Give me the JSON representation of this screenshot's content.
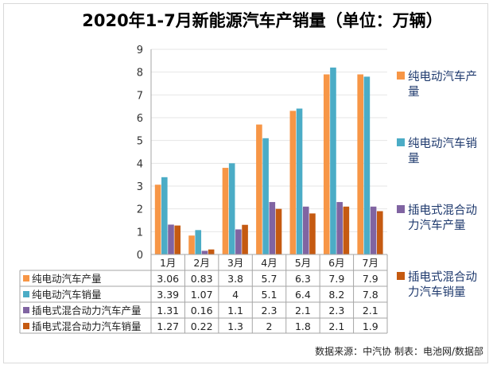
{
  "chart_data": {
    "type": "bar",
    "title": "2020年1-7月新能源汽车产销量（单位：万辆）",
    "categories": [
      "1月",
      "2月",
      "3月",
      "4月",
      "5月",
      "6月",
      "7月"
    ],
    "series": [
      {
        "name": "纯电动汽车产量",
        "color": "#F79646",
        "values": [
          3.06,
          0.83,
          3.8,
          5.7,
          6.3,
          7.9,
          7.9
        ]
      },
      {
        "name": "纯电动汽车销量",
        "color": "#4BACC6",
        "values": [
          3.39,
          1.07,
          4,
          5.1,
          6.4,
          8.2,
          7.8
        ]
      },
      {
        "name": "插电式混合动力汽车产量",
        "color": "#8064A2",
        "values": [
          1.31,
          0.16,
          1.1,
          2.3,
          2.1,
          2.3,
          2.1
        ]
      },
      {
        "name": "插电式混合动力汽车销量",
        "color": "#C55A11",
        "values": [
          1.27,
          0.22,
          1.3,
          2,
          1.8,
          2.1,
          1.9
        ]
      }
    ],
    "ylim": [
      0,
      9
    ],
    "yticks": [
      0,
      1,
      2,
      3,
      4,
      5,
      6,
      7,
      8,
      9
    ],
    "grid": true,
    "legend_position": "right",
    "data_table": true
  },
  "legend_lines": [
    [
      "纯电动汽车产",
      "量"
    ],
    [
      "纯电动汽车销",
      "量"
    ],
    [
      "插电式混合动",
      "力汽车产量"
    ],
    [
      "插电式混合动",
      "力汽车销量"
    ]
  ],
  "source": "数据来源：中汽协  制表：电池网/数据部"
}
